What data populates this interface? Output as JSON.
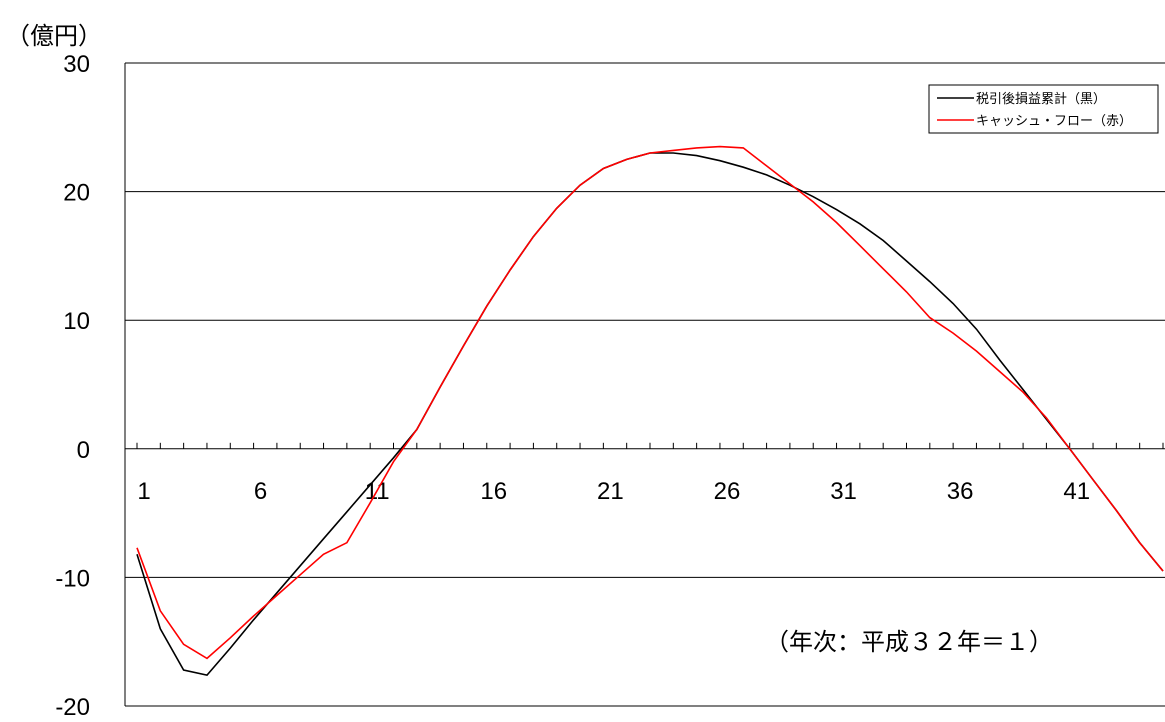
{
  "chart_data": {
    "type": "line",
    "ylabel": "（億円）",
    "note": "（年次：平成３２年＝１）",
    "ylim": [
      -20,
      30
    ],
    "yticks": [
      30,
      20,
      10,
      0,
      -10,
      -20
    ],
    "xlim": [
      1,
      45
    ],
    "xticks": [
      1,
      6,
      11,
      16,
      21,
      26,
      31,
      36,
      41
    ],
    "grid": true,
    "legend_position": "top-right",
    "series": [
      {
        "name": "税引後損益累計（黒）",
        "color": "#000000",
        "x": [
          1,
          2,
          3,
          4,
          5,
          6,
          7,
          8,
          9,
          10,
          11,
          12,
          13,
          14,
          15,
          16,
          17,
          18,
          19,
          20,
          21,
          22,
          23,
          24,
          25,
          26,
          27,
          28,
          29,
          30,
          31,
          32,
          33,
          34,
          35,
          36,
          37,
          38,
          39,
          40,
          41,
          42,
          43,
          44,
          45
        ],
        "y": [
          -8.2,
          -14,
          -17.2,
          -17.6,
          -15.5,
          -13.3,
          -11.2,
          -9.1,
          -7.0,
          -4.9,
          -2.8,
          -0.7,
          1.5,
          4.8,
          8.0,
          11.1,
          13.9,
          16.5,
          18.7,
          20.5,
          21.8,
          22.5,
          23.0,
          23.0,
          22.8,
          22.4,
          21.9,
          21.3,
          20.5,
          19.6,
          18.6,
          17.5,
          16.2,
          14.6,
          13.0,
          11.3,
          9.3,
          6.9,
          4.6,
          2.3,
          0.0,
          -2.4,
          -4.8,
          -7.3,
          -9.5
        ]
      },
      {
        "name": "キャッシュ・フロー（赤）",
        "color": "#ff0000",
        "x": [
          1,
          2,
          3,
          4,
          5,
          6,
          7,
          8,
          9,
          10,
          11,
          12,
          13,
          14,
          15,
          16,
          17,
          18,
          19,
          20,
          21,
          22,
          23,
          24,
          25,
          26,
          27,
          28,
          29,
          30,
          31,
          32,
          33,
          34,
          35,
          36,
          37,
          38,
          39,
          40,
          41,
          42,
          43,
          44,
          45
        ],
        "y": [
          -7.7,
          -12.6,
          -15.2,
          -16.3,
          -14.7,
          -13.0,
          -11.4,
          -9.8,
          -8.2,
          -7.3,
          -4.2,
          -1.0,
          1.5,
          4.8,
          8.0,
          11.1,
          13.9,
          16.5,
          18.7,
          20.5,
          21.8,
          22.5,
          23.0,
          23.2,
          23.4,
          23.5,
          23.4,
          22.0,
          20.6,
          19.2,
          17.6,
          15.8,
          14.0,
          12.2,
          10.2,
          9.0,
          7.6,
          6.0,
          4.4,
          2.4,
          0.0,
          -2.4,
          -4.8,
          -7.3,
          -9.5
        ]
      }
    ]
  }
}
